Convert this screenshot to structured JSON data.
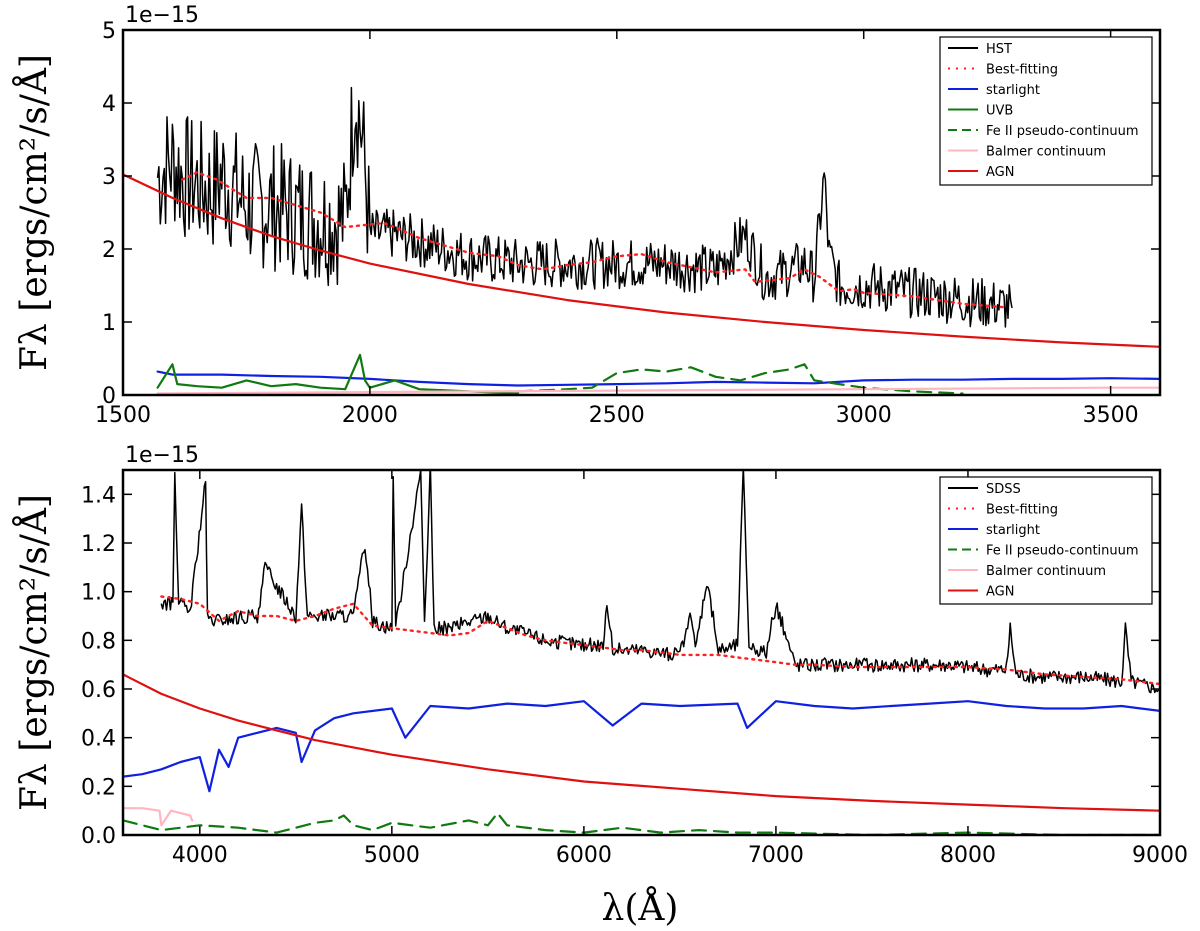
{
  "chart_data": [
    {
      "type": "line",
      "offset_label": "1e−15",
      "ylabel": "Fλ [ergs/cm²/s/Å]",
      "xlabel": "",
      "xlim": [
        1500,
        3600
      ],
      "ylim": [
        0,
        5
      ],
      "x_ticks": [
        1500,
        2000,
        2500,
        3000,
        3500
      ],
      "x_tick_labels": [
        "1500",
        "2000",
        "2500",
        "3000",
        "3500"
      ],
      "y_ticks": [
        0,
        1,
        2,
        3,
        4,
        5
      ],
      "y_tick_labels": [
        "0",
        "1",
        "2",
        "3",
        "4",
        "5"
      ],
      "legend_position": "top-right",
      "legend": [
        {
          "name": "HST",
          "color": "#000000",
          "style": "solid"
        },
        {
          "name": "Best-fitting",
          "color": "#ff2020",
          "style": "dotted"
        },
        {
          "name": "starlight",
          "color": "#1020e0",
          "style": "solid"
        },
        {
          "name": "UVB",
          "color": "#107a10",
          "style": "solid"
        },
        {
          "name": "Fe II pseudo-continuum",
          "color": "#107a10",
          "style": "dashed"
        },
        {
          "name": "Balmer continuum",
          "color": "#ffb6c1",
          "style": "solid"
        },
        {
          "name": "AGN",
          "color": "#e01010",
          "style": "solid"
        }
      ],
      "series": [
        {
          "name": "HST",
          "color": "#000000",
          "style": "solid",
          "x_range": [
            1570,
            3300
          ],
          "noisy": true,
          "x": [
            1570,
            1600,
            1620,
            1650,
            1680,
            1700,
            1750,
            1800,
            1850,
            1900,
            1950,
            1970,
            1985,
            2000,
            2050,
            2100,
            2200,
            2300,
            2400,
            2500,
            2600,
            2700,
            2760,
            2800,
            2850,
            2880,
            2900,
            2920,
            2930,
            2950,
            3000,
            3100,
            3200,
            3300
          ],
          "y": [
            3.0,
            3.2,
            3.0,
            2.9,
            2.8,
            3.0,
            2.6,
            2.6,
            2.5,
            2.4,
            2.4,
            4.2,
            3.5,
            2.2,
            2.2,
            2.1,
            1.9,
            1.8,
            1.8,
            1.8,
            1.8,
            1.7,
            2.2,
            1.6,
            1.7,
            1.8,
            1.6,
            3.0,
            1.9,
            1.5,
            1.5,
            1.4,
            1.3,
            1.2
          ]
        },
        {
          "name": "Best-fitting",
          "color": "#ff2020",
          "style": "dotted",
          "x": [
            1620,
            1650,
            1670,
            1690,
            1750,
            1800,
            1850,
            1900,
            1950,
            2020,
            2030,
            2050,
            2100,
            2200,
            2260,
            2300,
            2350,
            2400,
            2450,
            2500,
            2550,
            2600,
            2700,
            2760,
            2780,
            2850,
            2880,
            2910,
            2950,
            2980,
            3000,
            3100,
            3200,
            3290
          ],
          "y": [
            2.95,
            3.05,
            3.0,
            2.95,
            2.7,
            2.7,
            2.6,
            2.5,
            2.3,
            2.35,
            2.35,
            2.3,
            2.15,
            1.95,
            1.9,
            1.78,
            1.72,
            1.78,
            1.82,
            1.9,
            1.93,
            1.82,
            1.68,
            1.72,
            1.55,
            1.6,
            1.72,
            1.62,
            1.42,
            1.45,
            1.4,
            1.35,
            1.25,
            1.2
          ]
        },
        {
          "name": "starlight",
          "color": "#1020e0",
          "style": "solid",
          "x": [
            1570,
            1600,
            1700,
            1800,
            1900,
            2000,
            2100,
            2200,
            2300,
            2400,
            2500,
            2600,
            2700,
            2800,
            2900,
            3000,
            3100,
            3200,
            3300,
            3400,
            3500,
            3600
          ],
          "y": [
            0.32,
            0.28,
            0.28,
            0.26,
            0.25,
            0.22,
            0.18,
            0.15,
            0.13,
            0.14,
            0.15,
            0.16,
            0.18,
            0.17,
            0.16,
            0.2,
            0.21,
            0.21,
            0.22,
            0.22,
            0.23,
            0.22
          ]
        },
        {
          "name": "UVB",
          "color": "#107a10",
          "style": "solid",
          "x": [
            1570,
            1600,
            1610,
            1650,
            1700,
            1750,
            1800,
            1850,
            1900,
            1950,
            1980,
            1990,
            2000,
            2050,
            2100,
            2200,
            2300
          ],
          "y": [
            0.1,
            0.42,
            0.15,
            0.12,
            0.1,
            0.2,
            0.12,
            0.15,
            0.1,
            0.08,
            0.55,
            0.2,
            0.1,
            0.2,
            0.08,
            0.05,
            0.02
          ]
        },
        {
          "name": "Fe II pseudo-continuum",
          "color": "#107a10",
          "style": "dashed",
          "x": [
            2300,
            2400,
            2450,
            2500,
            2550,
            2600,
            2650,
            2700,
            2750,
            2800,
            2850,
            2880,
            2900,
            2950,
            3000,
            3100,
            3200
          ],
          "y": [
            0.05,
            0.08,
            0.1,
            0.3,
            0.35,
            0.32,
            0.38,
            0.25,
            0.2,
            0.3,
            0.35,
            0.42,
            0.2,
            0.15,
            0.1,
            0.05,
            0.02
          ]
        },
        {
          "name": "Balmer continuum",
          "color": "#ffb6c1",
          "style": "solid",
          "x": [
            1570,
            2000,
            2500,
            3000,
            3500,
            3600
          ],
          "y": [
            0.02,
            0.04,
            0.06,
            0.08,
            0.1,
            0.1
          ]
        },
        {
          "name": "AGN",
          "color": "#e01010",
          "style": "solid",
          "x": [
            1500,
            1600,
            1700,
            1800,
            1900,
            2000,
            2200,
            2400,
            2600,
            2800,
            3000,
            3200,
            3400,
            3600
          ],
          "y": [
            3.02,
            2.7,
            2.42,
            2.18,
            1.98,
            1.8,
            1.52,
            1.3,
            1.13,
            1.0,
            0.89,
            0.8,
            0.72,
            0.66
          ]
        }
      ]
    },
    {
      "type": "line",
      "offset_label": "1e−15",
      "ylabel": "Fλ [ergs/cm²/s/Å]",
      "xlabel": "λ(Å)",
      "xlim": [
        3600,
        9000
      ],
      "ylim": [
        0,
        1.5
      ],
      "x_ticks": [
        4000,
        5000,
        6000,
        7000,
        8000,
        9000
      ],
      "x_tick_labels": [
        "4000",
        "5000",
        "6000",
        "7000",
        "8000",
        "9000"
      ],
      "y_ticks": [
        0,
        0.2,
        0.4,
        0.6,
        0.8,
        1.0,
        1.2,
        1.4
      ],
      "y_tick_labels": [
        "0.0",
        "0.2",
        "0.4",
        "0.6",
        "0.8",
        "1.0",
        "1.2",
        "1.4"
      ],
      "legend_position": "top-right",
      "legend": [
        {
          "name": "SDSS",
          "color": "#000000",
          "style": "solid"
        },
        {
          "name": "Best-fitting",
          "color": "#ff2020",
          "style": "dotted"
        },
        {
          "name": "starlight",
          "color": "#1020e0",
          "style": "solid"
        },
        {
          "name": "Fe II pseudo-continuum",
          "color": "#107a10",
          "style": "dashed"
        },
        {
          "name": "Balmer continuum",
          "color": "#ffb6c1",
          "style": "solid"
        },
        {
          "name": "AGN",
          "color": "#e01010",
          "style": "solid"
        }
      ],
      "series": [
        {
          "name": "SDSS",
          "color": "#000000",
          "style": "solid",
          "noisy": true,
          "x": [
            3800,
            3860,
            3870,
            3890,
            3950,
            4030,
            4040,
            4100,
            4300,
            4340,
            4500,
            4530,
            4560,
            4800,
            4860,
            4900,
            5000,
            5007,
            5020,
            5150,
            5170,
            5200,
            5220,
            5300,
            5500,
            5600,
            5800,
            6000,
            6100,
            6120,
            6150,
            6300,
            6500,
            6560,
            6580,
            6640,
            6700,
            6800,
            6830,
            6860,
            6950,
            7000,
            7100,
            7300,
            7500,
            7700,
            7900,
            8100,
            8200,
            8220,
            8250,
            8400,
            8600,
            8800,
            8820,
            8850,
            9000
          ],
          "y": [
            0.95,
            0.95,
            1.5,
            0.95,
            0.92,
            1.45,
            0.88,
            0.88,
            0.9,
            1.1,
            0.9,
            1.35,
            0.9,
            0.9,
            1.2,
            0.88,
            0.85,
            1.5,
            0.85,
            1.5,
            0.85,
            1.5,
            0.85,
            0.85,
            0.9,
            0.85,
            0.8,
            0.78,
            0.78,
            0.95,
            0.76,
            0.76,
            0.74,
            0.9,
            0.76,
            1.05,
            0.76,
            0.78,
            1.5,
            0.78,
            0.75,
            0.95,
            0.7,
            0.7,
            0.7,
            0.7,
            0.7,
            0.68,
            0.68,
            0.85,
            0.66,
            0.65,
            0.65,
            0.63,
            0.85,
            0.63,
            0.6
          ]
        },
        {
          "name": "Best-fitting",
          "color": "#ff2020",
          "style": "dotted",
          "x": [
            3800,
            3900,
            4000,
            4100,
            4200,
            4300,
            4400,
            4500,
            4600,
            4700,
            4800,
            4900,
            5000,
            5100,
            5200,
            5300,
            5400,
            5500,
            5600,
            5700,
            5800,
            5900,
            6000,
            6100,
            6200,
            6300,
            6400,
            6500,
            6600,
            6700,
            6800,
            6900,
            7000,
            7100,
            7200,
            7400,
            7600,
            7800,
            8000,
            8200,
            8400,
            8600,
            8800,
            8900,
            9000
          ],
          "y": [
            0.98,
            0.97,
            0.95,
            0.88,
            0.92,
            0.9,
            0.9,
            0.88,
            0.9,
            0.93,
            0.95,
            0.86,
            0.85,
            0.84,
            0.83,
            0.82,
            0.83,
            0.88,
            0.85,
            0.82,
            0.8,
            0.79,
            0.78,
            0.77,
            0.76,
            0.76,
            0.75,
            0.74,
            0.74,
            0.74,
            0.73,
            0.72,
            0.71,
            0.7,
            0.7,
            0.69,
            0.69,
            0.69,
            0.69,
            0.68,
            0.66,
            0.65,
            0.64,
            0.63,
            0.62
          ]
        },
        {
          "name": "starlight",
          "color": "#1020e0",
          "style": "solid",
          "x": [
            3600,
            3700,
            3800,
            3900,
            4000,
            4050,
            4100,
            4150,
            4200,
            4300,
            4400,
            4500,
            4530,
            4600,
            4700,
            4800,
            5000,
            5070,
            5200,
            5400,
            5600,
            5800,
            6000,
            6150,
            6300,
            6500,
            6800,
            6850,
            7000,
            7200,
            7400,
            7600,
            7800,
            8000,
            8200,
            8400,
            8600,
            8800,
            8900,
            9000
          ],
          "y": [
            0.24,
            0.25,
            0.27,
            0.3,
            0.32,
            0.18,
            0.35,
            0.28,
            0.4,
            0.42,
            0.44,
            0.42,
            0.3,
            0.43,
            0.48,
            0.5,
            0.52,
            0.4,
            0.53,
            0.52,
            0.54,
            0.53,
            0.55,
            0.45,
            0.54,
            0.53,
            0.54,
            0.44,
            0.55,
            0.53,
            0.52,
            0.53,
            0.54,
            0.55,
            0.53,
            0.52,
            0.52,
            0.53,
            0.52,
            0.51
          ]
        },
        {
          "name": "Fe II pseudo-continuum",
          "color": "#107a10",
          "style": "dashed",
          "x": [
            3600,
            3800,
            4000,
            4200,
            4400,
            4600,
            4700,
            4750,
            4800,
            4900,
            5000,
            5200,
            5400,
            5500,
            5550,
            5600,
            5800,
            6000,
            6200,
            6400,
            6600,
            6800,
            7000,
            7500,
            8000,
            8500,
            9000
          ],
          "y": [
            0.06,
            0.02,
            0.04,
            0.03,
            0.01,
            0.05,
            0.06,
            0.08,
            0.04,
            0.02,
            0.05,
            0.03,
            0.06,
            0.04,
            0.09,
            0.04,
            0.02,
            0.01,
            0.03,
            0.01,
            0.02,
            0.01,
            0.01,
            0.0,
            0.01,
            0.0,
            0.0
          ]
        },
        {
          "name": "Balmer continuum",
          "color": "#ffb6c1",
          "style": "solid",
          "x": [
            3600,
            3700,
            3790,
            3800,
            3850,
            3900,
            3950,
            3960
          ],
          "y": [
            0.11,
            0.11,
            0.1,
            0.04,
            0.1,
            0.09,
            0.08,
            0.06
          ]
        },
        {
          "name": "AGN",
          "color": "#e01010",
          "style": "solid",
          "x": [
            3600,
            3800,
            4000,
            4200,
            4400,
            4600,
            4800,
            5000,
            5500,
            6000,
            6500,
            7000,
            7500,
            8000,
            8500,
            9000
          ],
          "y": [
            0.66,
            0.58,
            0.52,
            0.47,
            0.43,
            0.39,
            0.36,
            0.33,
            0.27,
            0.22,
            0.19,
            0.16,
            0.14,
            0.125,
            0.11,
            0.1
          ]
        }
      ]
    }
  ]
}
